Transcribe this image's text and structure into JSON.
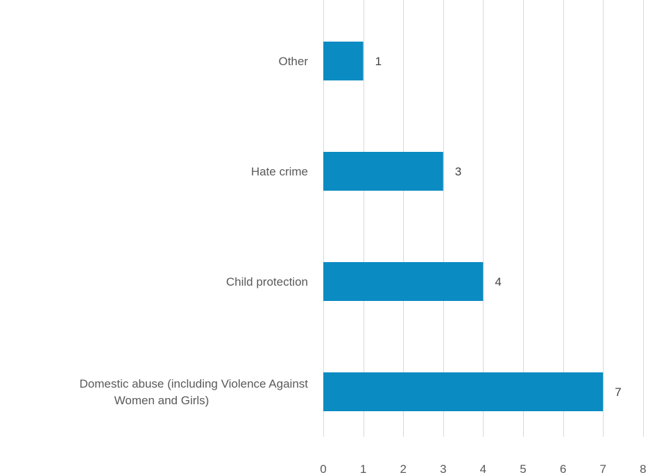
{
  "chart_data": {
    "type": "bar",
    "orientation": "horizontal",
    "categories": [
      "Other",
      "Hate crime",
      "Child protection",
      "Domestic abuse (including Violence Against Women and Girls)"
    ],
    "category_label_lines": [
      [
        "Other"
      ],
      [
        "Hate crime"
      ],
      [
        "Child protection"
      ],
      [
        "Domestic abuse (including Violence Against",
        "Women and Girls)"
      ]
    ],
    "values": [
      1,
      3,
      4,
      7
    ],
    "data_labels": [
      "1",
      "3",
      "4",
      "7"
    ],
    "xlim": [
      0,
      8
    ],
    "x_ticks": [
      0,
      1,
      2,
      3,
      4,
      5,
      6,
      7,
      8
    ],
    "x_tick_labels": [
      "0",
      "1",
      "2",
      "3",
      "4",
      "5",
      "6",
      "7",
      "8"
    ],
    "grid": true,
    "bar_color": "#0a8bc2",
    "title": "",
    "xlabel": "",
    "ylabel": ""
  }
}
